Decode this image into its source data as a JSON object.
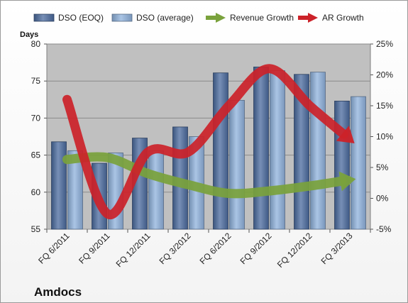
{
  "chart_data": {
    "type": "bar",
    "company": "Amdocs",
    "left_axis_label": "Days",
    "categories": [
      "FQ 6/2011",
      "FQ 9/2011",
      "FQ 12/2011",
      "FQ 3/2012",
      "FQ 6/2012",
      "FQ 9/2012",
      "FQ 12/2012",
      "FQ 3/2013"
    ],
    "ylim_left": [
      55,
      80
    ],
    "left_ticks": [
      "55",
      "60",
      "65",
      "70",
      "75",
      "80"
    ],
    "ylim_right": [
      -5,
      25
    ],
    "right_ticks": [
      "-5%",
      "0%",
      "5%",
      "10%",
      "15%",
      "20%",
      "25%"
    ],
    "grid": true,
    "legend_position": "top",
    "series": [
      {
        "name": "DSO (EOQ)",
        "kind": "bar",
        "axis": "left",
        "color": "#4a6a9e",
        "values": [
          66.8,
          63.9,
          67.3,
          68.8,
          76.1,
          76.9,
          75.9,
          72.3
        ]
      },
      {
        "name": "DSO (average)",
        "kind": "bar",
        "axis": "left",
        "color": "#8eb1dc",
        "values": [
          65.6,
          65.3,
          65.6,
          67.5,
          72.4,
          76.4,
          76.2,
          72.9
        ]
      },
      {
        "name": "Revenue Growth",
        "kind": "line",
        "axis": "right",
        "color": "#7aa23c",
        "values": [
          6.3,
          6.6,
          4.0,
          2.2,
          0.8,
          1.2,
          2.0,
          3.0
        ]
      },
      {
        "name": "AR Growth",
        "kind": "line",
        "axis": "right",
        "color": "#cc2229",
        "values": [
          16.0,
          -2.5,
          7.5,
          7.5,
          15.0,
          21.0,
          15.0,
          9.5
        ]
      }
    ]
  }
}
